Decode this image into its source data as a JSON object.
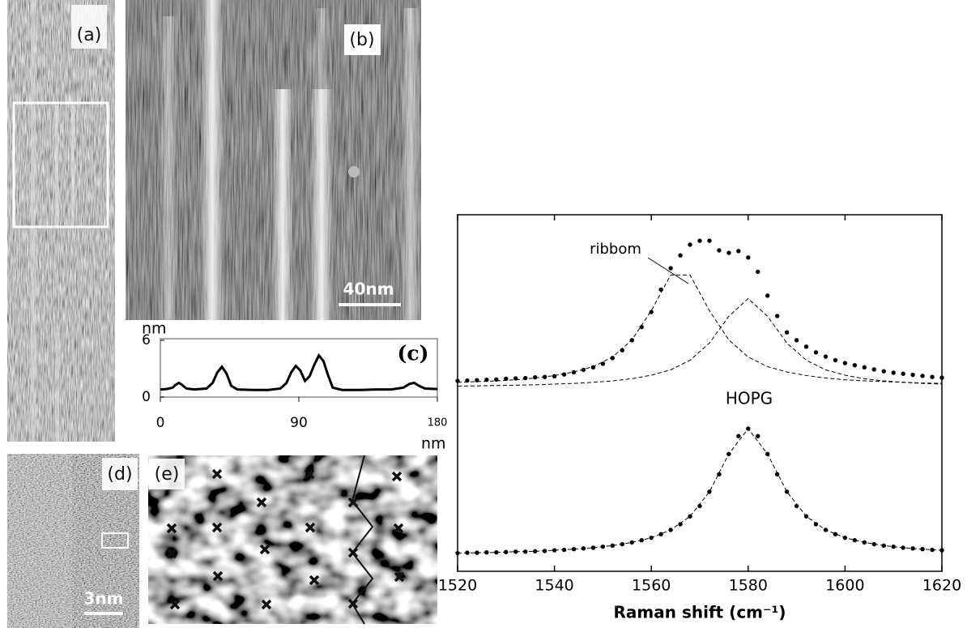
{
  "panels": {
    "a": {
      "label": "(a)"
    },
    "b": {
      "label": "(b)",
      "scale_bar": "40nm"
    },
    "d": {
      "label": "(d)",
      "scale_bar": "3nm"
    },
    "e": {
      "label": "(e)"
    }
  },
  "chart_data": [
    {
      "type": "line",
      "title": "(c)",
      "y_unit": "nm",
      "x_unit": "nm",
      "color": "#000000",
      "x": [
        0,
        4,
        8,
        10,
        12,
        14,
        17,
        22,
        30,
        34,
        37,
        40,
        43,
        46,
        50,
        60,
        70,
        78,
        82,
        85,
        88,
        91,
        94,
        97,
        100,
        103,
        106,
        109,
        112,
        118,
        130,
        140,
        150,
        158,
        162,
        165,
        168,
        172,
        180
      ],
      "values": [
        0.8,
        0.85,
        1.0,
        1.3,
        1.5,
        1.3,
        0.9,
        0.8,
        0.9,
        1.5,
        2.6,
        3.2,
        2.5,
        1.2,
        0.8,
        0.75,
        0.75,
        0.9,
        1.5,
        2.6,
        3.3,
        2.8,
        1.7,
        2.2,
        3.4,
        4.4,
        3.8,
        2.3,
        1.0,
        0.75,
        0.75,
        0.8,
        0.8,
        1.0,
        1.4,
        1.5,
        1.2,
        0.9,
        0.85
      ],
      "xlim": [
        0,
        180
      ],
      "xticks": [
        0,
        90,
        180
      ],
      "ylim": [
        0,
        6
      ],
      "yticks": [
        0,
        6
      ]
    },
    {
      "type": "scatter",
      "xlabel": "Raman shift (cm⁻¹)",
      "annotations": [
        "ribbom",
        "HOPG"
      ],
      "xlim": [
        1520,
        1620
      ],
      "xticks": [
        1520,
        1540,
        1560,
        1580,
        1600,
        1620
      ],
      "ylim": [
        0,
        10
      ],
      "series": [
        {
          "style": "dots",
          "color": "#000000",
          "x": [
            1520,
            1522,
            1524,
            1526,
            1528,
            1530,
            1532,
            1534,
            1536,
            1538,
            1540,
            1542,
            1544,
            1546,
            1548,
            1550,
            1552,
            1554,
            1556,
            1558,
            1560,
            1562,
            1564,
            1566,
            1568,
            1570,
            1572,
            1574,
            1576,
            1578,
            1580,
            1582,
            1584,
            1586,
            1588,
            1590,
            1592,
            1594,
            1596,
            1598,
            1600,
            1602,
            1604,
            1606,
            1608,
            1610,
            1612,
            1614,
            1616,
            1618,
            1620
          ],
          "values": [
            5.34,
            5.35,
            5.36,
            5.37,
            5.38,
            5.4,
            5.41,
            5.42,
            5.44,
            5.45,
            5.47,
            5.52,
            5.58,
            5.65,
            5.72,
            5.82,
            5.98,
            6.2,
            6.48,
            6.85,
            7.27,
            7.9,
            8.5,
            8.86,
            9.16,
            9.27,
            9.27,
            9.0,
            8.93,
            8.98,
            8.8,
            8.4,
            7.73,
            7.16,
            6.7,
            6.48,
            6.3,
            6.14,
            6.02,
            5.92,
            5.84,
            5.78,
            5.72,
            5.66,
            5.61,
            5.57,
            5.54,
            5.51,
            5.48,
            5.45,
            5.43
          ]
        },
        {
          "style": "dashed",
          "color": "#000000",
          "x": [
            1520,
            1524,
            1528,
            1532,
            1536,
            1540,
            1544,
            1548,
            1552,
            1556,
            1560,
            1564,
            1568,
            1572,
            1576,
            1580,
            1584,
            1588,
            1592,
            1596,
            1600,
            1604,
            1608,
            1612,
            1616,
            1620
          ],
          "values": [
            5.3,
            5.32,
            5.34,
            5.37,
            5.42,
            5.49,
            5.59,
            5.74,
            6.01,
            6.49,
            7.31,
            8.31,
            8.31,
            7.31,
            6.49,
            6.01,
            5.74,
            5.59,
            5.49,
            5.42,
            5.37,
            5.34,
            5.32,
            5.3,
            5.28,
            5.27
          ]
        },
        {
          "style": "dashed",
          "color": "#000000",
          "x": [
            1520,
            1524,
            1528,
            1532,
            1536,
            1540,
            1544,
            1548,
            1552,
            1556,
            1560,
            1564,
            1568,
            1572,
            1576,
            1580,
            1584,
            1588,
            1592,
            1596,
            1600,
            1604,
            1608,
            1612,
            1616,
            1620
          ],
          "values": [
            5.19,
            5.2,
            5.21,
            5.22,
            5.23,
            5.25,
            5.27,
            5.3,
            5.34,
            5.4,
            5.5,
            5.65,
            5.92,
            6.4,
            7.15,
            7.65,
            7.15,
            6.4,
            5.92,
            5.65,
            5.5,
            5.4,
            5.34,
            5.3,
            5.27,
            5.25
          ]
        },
        {
          "style": "dots",
          "color": "#000000",
          "x": [
            1520,
            1522,
            1524,
            1526,
            1528,
            1530,
            1532,
            1534,
            1536,
            1538,
            1540,
            1542,
            1544,
            1546,
            1548,
            1550,
            1552,
            1554,
            1556,
            1558,
            1560,
            1562,
            1564,
            1566,
            1568,
            1570,
            1572,
            1574,
            1576,
            1578,
            1580,
            1582,
            1584,
            1586,
            1588,
            1590,
            1592,
            1594,
            1596,
            1598,
            1600,
            1602,
            1604,
            1606,
            1608,
            1610,
            1612,
            1614,
            1616,
            1618,
            1620
          ],
          "values": [
            0.51,
            0.52,
            0.52,
            0.53,
            0.53,
            0.54,
            0.55,
            0.55,
            0.56,
            0.57,
            0.59,
            0.6,
            0.62,
            0.64,
            0.66,
            0.69,
            0.72,
            0.76,
            0.81,
            0.87,
            0.94,
            1.04,
            1.16,
            1.32,
            1.54,
            1.83,
            2.23,
            2.72,
            3.29,
            3.79,
            4.0,
            3.79,
            3.29,
            2.72,
            2.23,
            1.83,
            1.54,
            1.32,
            1.16,
            1.04,
            0.94,
            0.87,
            0.81,
            0.76,
            0.72,
            0.69,
            0.66,
            0.64,
            0.62,
            0.6,
            0.59
          ]
        },
        {
          "style": "dashed",
          "color": "#000000",
          "x": [
            1520,
            1524,
            1528,
            1532,
            1536,
            1540,
            1544,
            1548,
            1552,
            1556,
            1560,
            1564,
            1568,
            1572,
            1576,
            1580,
            1584,
            1588,
            1592,
            1596,
            1600,
            1604,
            1608,
            1612,
            1616,
            1620
          ],
          "values": [
            0.51,
            0.52,
            0.53,
            0.55,
            0.56,
            0.59,
            0.62,
            0.66,
            0.72,
            0.81,
            0.94,
            1.16,
            1.54,
            2.23,
            3.29,
            4.0,
            3.29,
            2.23,
            1.54,
            1.16,
            0.94,
            0.81,
            0.72,
            0.66,
            0.62,
            0.59
          ]
        }
      ]
    }
  ]
}
